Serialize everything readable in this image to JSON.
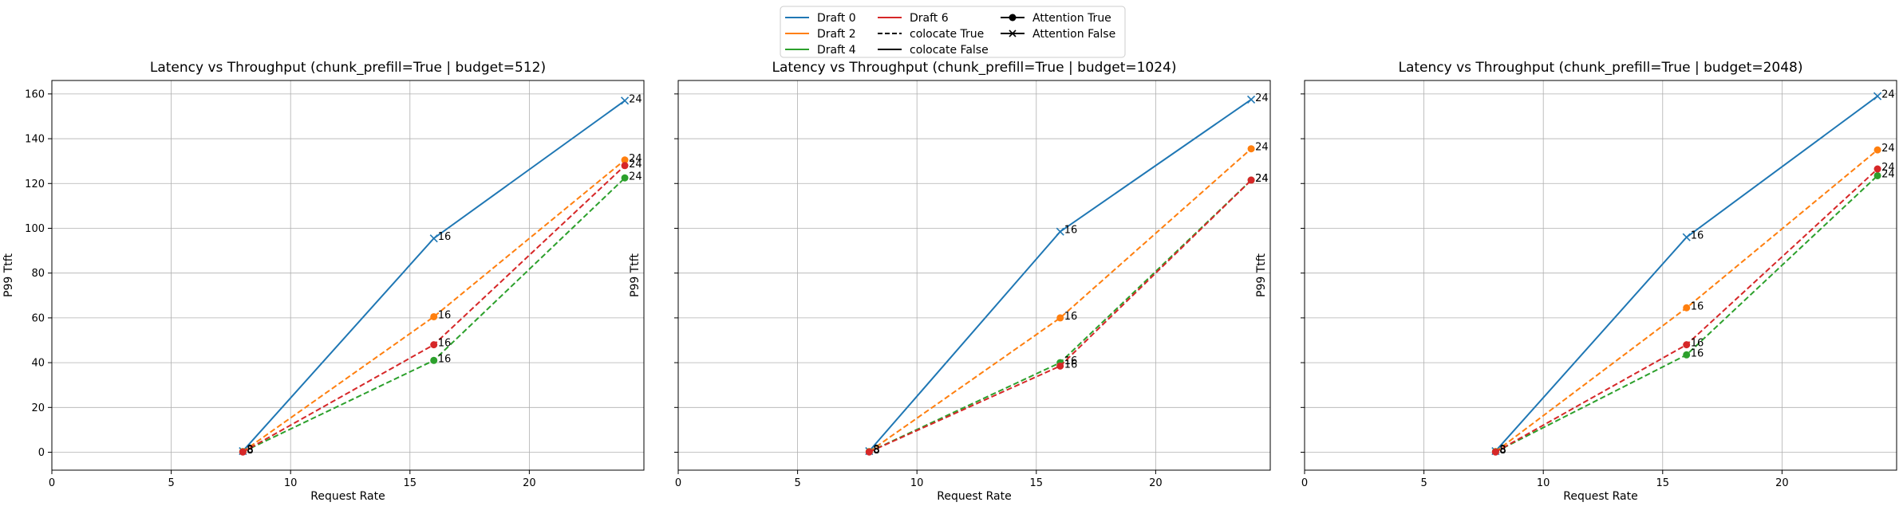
{
  "chart_data": {
    "type": "line",
    "legend": {
      "placement": "top-center",
      "entries": [
        {
          "label": "Draft 0",
          "kind": "color",
          "color": "#1f77b4"
        },
        {
          "label": "Draft 2",
          "kind": "color",
          "color": "#ff7f0e"
        },
        {
          "label": "Draft 4",
          "kind": "color",
          "color": "#2ca02c"
        },
        {
          "label": "Draft 6",
          "kind": "color",
          "color": "#d62728"
        },
        {
          "label": "colocate True",
          "kind": "dashed",
          "color": "#000000"
        },
        {
          "label": "colocate False",
          "kind": "solid",
          "color": "#000000"
        },
        {
          "label": "Attention True",
          "kind": "marker-o",
          "color": "#000000"
        },
        {
          "label": "Attention False",
          "kind": "marker-x",
          "color": "#000000"
        }
      ]
    },
    "panels": [
      {
        "title": "Latency vs Throughput (chunk_prefill=True | budget=512)",
        "xlabel": "Request Rate",
        "ylabel": "P99 Ttft",
        "xlim": [
          0,
          24.8
        ],
        "ylim": [
          -8,
          166
        ],
        "xticks": [
          0,
          5,
          10,
          15,
          20
        ],
        "yticks": [
          0,
          20,
          40,
          60,
          80,
          100,
          120,
          140,
          160
        ],
        "grid": true,
        "series": [
          {
            "name": "Draft 0",
            "color": "#1f77b4",
            "dash": false,
            "marker": "x",
            "x": [
              8,
              16,
              24
            ],
            "y": [
              0.5,
              95.5,
              157
            ],
            "labels": [
              "8",
              "16",
              "24"
            ]
          },
          {
            "name": "Draft 2",
            "color": "#ff7f0e",
            "dash": true,
            "marker": "o",
            "x": [
              8,
              16,
              24
            ],
            "y": [
              0.3,
              60.5,
              130.5
            ],
            "labels": [
              "8",
              "16",
              "24"
            ]
          },
          {
            "name": "Draft 4",
            "color": "#2ca02c",
            "dash": true,
            "marker": "o",
            "x": [
              8,
              16,
              24
            ],
            "y": [
              0.2,
              41,
              122.5
            ],
            "labels": [
              "8",
              "16",
              "24"
            ]
          },
          {
            "name": "Draft 6",
            "color": "#d62728",
            "dash": true,
            "marker": "o",
            "x": [
              8,
              16,
              24
            ],
            "y": [
              0.1,
              48,
              128
            ],
            "labels": [
              "8",
              "16",
              "24"
            ]
          }
        ]
      },
      {
        "title": "Latency vs Throughput (chunk_prefill=True | budget=1024)",
        "xlabel": "Request Rate",
        "ylabel": "P99 Ttft",
        "xlim": [
          0,
          24.8
        ],
        "ylim": [
          -8,
          166
        ],
        "xticks": [
          0,
          5,
          10,
          15,
          20
        ],
        "yticks": [
          0,
          20,
          40,
          60,
          80,
          100,
          120,
          140,
          160
        ],
        "grid": true,
        "series": [
          {
            "name": "Draft 0",
            "color": "#1f77b4",
            "dash": false,
            "marker": "x",
            "x": [
              8,
              16,
              24
            ],
            "y": [
              0.5,
              98.5,
              157.5
            ],
            "labels": [
              "8",
              "16",
              "24"
            ]
          },
          {
            "name": "Draft 2",
            "color": "#ff7f0e",
            "dash": true,
            "marker": "o",
            "x": [
              8,
              16,
              24
            ],
            "y": [
              0.3,
              60,
              135.5
            ],
            "labels": [
              "8",
              "16",
              "24"
            ]
          },
          {
            "name": "Draft 4",
            "color": "#2ca02c",
            "dash": true,
            "marker": "o",
            "x": [
              8,
              16,
              24
            ],
            "y": [
              0.2,
              40,
              121.5
            ],
            "labels": [
              "8",
              "16",
              "24"
            ]
          },
          {
            "name": "Draft 6",
            "color": "#d62728",
            "dash": true,
            "marker": "o",
            "x": [
              8,
              16,
              24
            ],
            "y": [
              0.1,
              38.5,
              121.5
            ],
            "labels": [
              "8",
              "16",
              "24"
            ]
          }
        ]
      },
      {
        "title": "Latency vs Throughput (chunk_prefill=True | budget=2048)",
        "xlabel": "Request Rate",
        "ylabel": "P99 Ttft",
        "xlim": [
          0,
          24.8
        ],
        "ylim": [
          -8,
          166
        ],
        "xticks": [
          0,
          5,
          10,
          15,
          20
        ],
        "yticks": [
          0,
          20,
          40,
          60,
          80,
          100,
          120,
          140,
          160
        ],
        "grid": true,
        "series": [
          {
            "name": "Draft 0",
            "color": "#1f77b4",
            "dash": false,
            "marker": "x",
            "x": [
              8,
              16,
              24
            ],
            "y": [
              0.5,
              96,
              159
            ],
            "labels": [
              "8",
              "16",
              "24"
            ]
          },
          {
            "name": "Draft 2",
            "color": "#ff7f0e",
            "dash": true,
            "marker": "o",
            "x": [
              8,
              16,
              24
            ],
            "y": [
              0.3,
              64.5,
              135
            ],
            "labels": [
              "8",
              "16",
              "24"
            ]
          },
          {
            "name": "Draft 4",
            "color": "#2ca02c",
            "dash": true,
            "marker": "o",
            "x": [
              8,
              16,
              24
            ],
            "y": [
              0.2,
              43.5,
              123.5
            ],
            "labels": [
              "8",
              "16",
              "24"
            ]
          },
          {
            "name": "Draft 6",
            "color": "#d62728",
            "dash": true,
            "marker": "o",
            "x": [
              8,
              16,
              24
            ],
            "y": [
              0.1,
              48,
              126.5
            ],
            "labels": [
              "8",
              "16",
              "24"
            ]
          }
        ]
      }
    ]
  }
}
